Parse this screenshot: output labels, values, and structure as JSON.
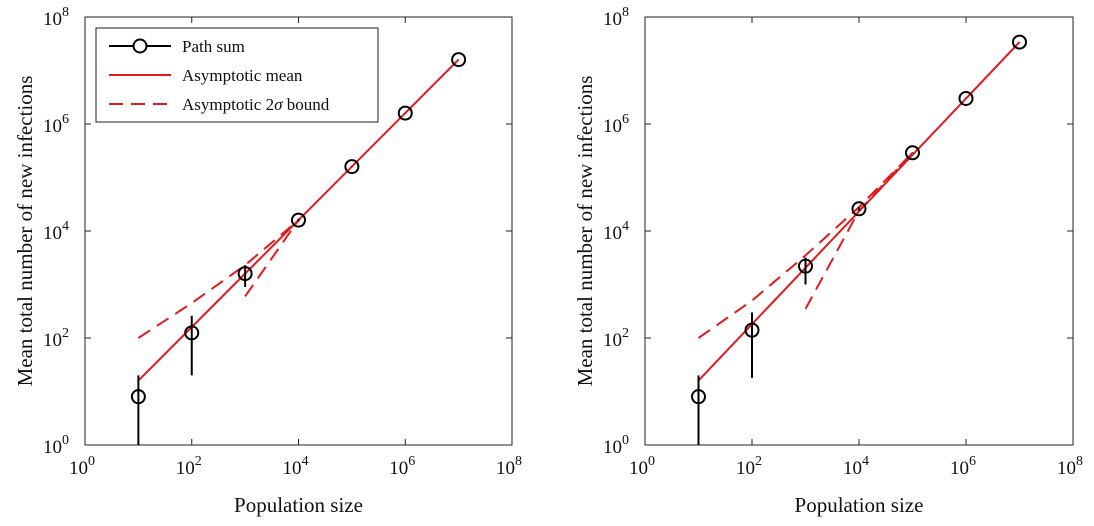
{
  "chart_data": [
    {
      "type": "line",
      "xlabel": "Population size",
      "ylabel": "Mean total number of new infections",
      "xscale": "log",
      "yscale": "log",
      "xlim": [
        1,
        100000000
      ],
      "ylim": [
        1,
        100000000
      ],
      "ticks": [
        {
          "base": "10",
          "exp": "0",
          "value": 1
        },
        {
          "base": "10",
          "exp": "2",
          "value": 100
        },
        {
          "base": "10",
          "exp": "4",
          "value": 10000
        },
        {
          "base": "10",
          "exp": "6",
          "value": 1000000
        },
        {
          "base": "10",
          "exp": "8",
          "value": 100000000
        }
      ],
      "legend": {
        "placement": "top-left",
        "entries": [
          {
            "label": "Path sum",
            "style": "black circles with error bars",
            "color": "#000000"
          },
          {
            "label_prefix": "Asymptotic mean",
            "style": "solid",
            "color": "#e31a1c"
          },
          {
            "label_prefix": "Asymptotic 2",
            "label_symbol": "σ",
            "label_suffix": " bound",
            "style": "dashed",
            "color": "#e31a1c"
          }
        ]
      },
      "series": [
        {
          "name": "Path sum",
          "x": [
            10,
            100,
            1000,
            10000,
            100000,
            1000000,
            10000000
          ],
          "y": [
            8,
            125,
            1600,
            16000,
            160000,
            1600000,
            16000000
          ],
          "err_low": [
            1,
            20,
            900,
            15000,
            158000,
            1590000,
            15900000
          ],
          "err_high": [
            20,
            260,
            2300,
            17000,
            162000,
            1610000,
            16100000
          ]
        },
        {
          "name": "Asymptotic mean",
          "x": [
            10,
            10000000
          ],
          "y": [
            16,
            16000000
          ]
        },
        {
          "name": "Asymptotic 2σ bound (upper)",
          "x": [
            10,
            100,
            1000,
            10000
          ],
          "y": [
            100,
            450,
            2300,
            16000
          ]
        },
        {
          "name": "Asymptotic 2σ bound (lower)",
          "x": [
            1000,
            10000
          ],
          "y": [
            600,
            16000
          ]
        }
      ]
    },
    {
      "type": "line",
      "xlabel": "Population size",
      "ylabel": "Mean total number of new infections",
      "xscale": "log",
      "yscale": "log",
      "xlim": [
        1,
        100000000
      ],
      "ylim": [
        1,
        100000000
      ],
      "ticks": [
        {
          "base": "10",
          "exp": "0",
          "value": 1
        },
        {
          "base": "10",
          "exp": "2",
          "value": 100
        },
        {
          "base": "10",
          "exp": "4",
          "value": 10000
        },
        {
          "base": "10",
          "exp": "6",
          "value": 1000000
        },
        {
          "base": "10",
          "exp": "8",
          "value": 100000000
        }
      ],
      "series": [
        {
          "name": "Path sum",
          "x": [
            10,
            100,
            1000,
            10000,
            100000,
            1000000,
            10000000
          ],
          "y": [
            8,
            140,
            2200,
            26000,
            290000,
            3000000,
            34000000
          ],
          "err_low": [
            1,
            18,
            1000,
            24000,
            285000,
            2980000,
            33800000
          ],
          "err_high": [
            20,
            300,
            3200,
            28000,
            295000,
            3020000,
            34200000
          ]
        },
        {
          "name": "Asymptotic mean",
          "x": [
            10,
            10000000
          ],
          "y": [
            16,
            34000000
          ]
        },
        {
          "name": "Asymptotic 2σ bound (upper)",
          "x": [
            10,
            100,
            1000,
            10000,
            100000
          ],
          "y": [
            100,
            500,
            3500,
            28000,
            290000
          ]
        },
        {
          "name": "Asymptotic 2σ bound (lower)",
          "x": [
            1000,
            10000,
            100000
          ],
          "y": [
            350,
            24000,
            290000
          ]
        }
      ]
    }
  ]
}
